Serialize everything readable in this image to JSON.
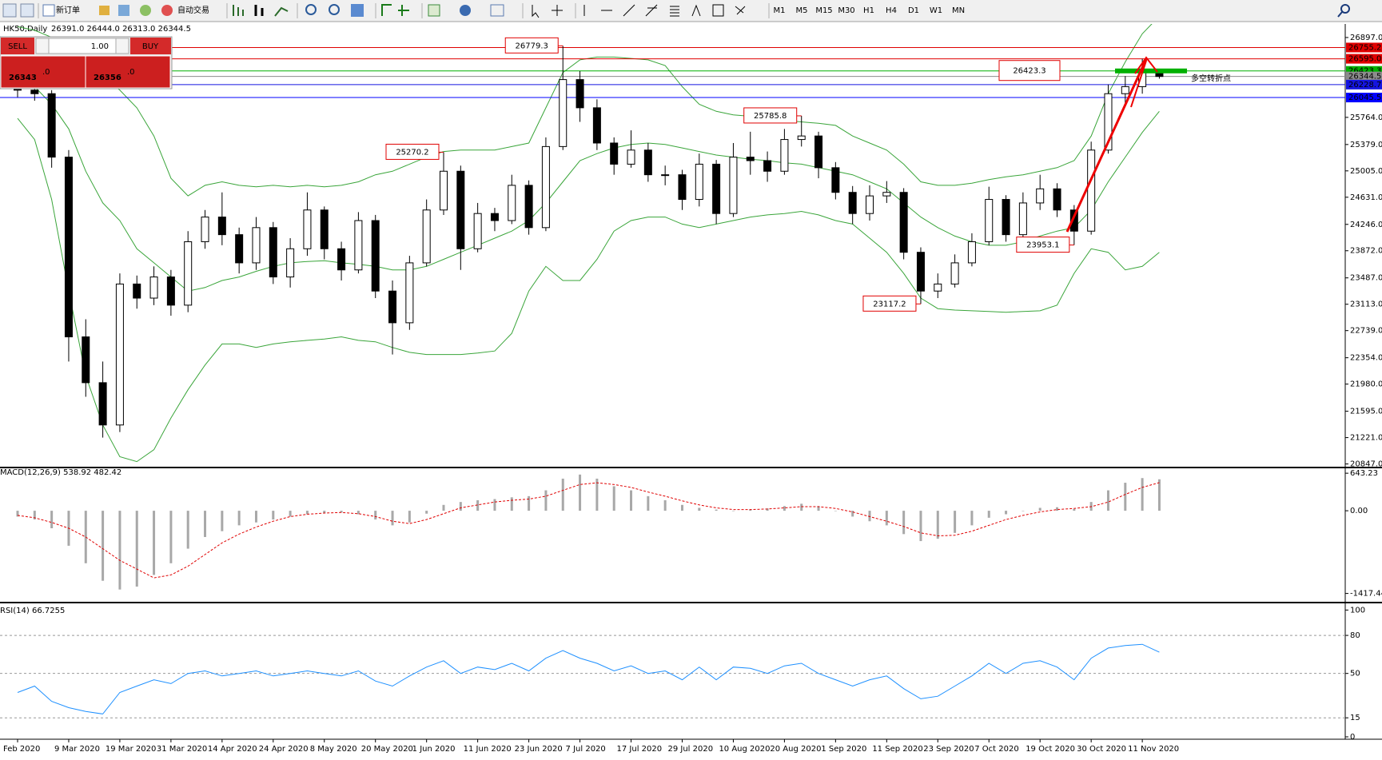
{
  "toolbar": {
    "buttons": [
      "新订单",
      "自动交易"
    ],
    "timeframes": [
      "M1",
      "M5",
      "M15",
      "M30",
      "H1",
      "H4",
      "D1",
      "W1",
      "MN"
    ]
  },
  "trade_panel": {
    "sell": "SELL",
    "buy": "BUY",
    "lots": "1.00",
    "bid": "26343",
    "bid_tail": ".0",
    "ask": "26356",
    "ask_tail": ".0"
  },
  "chart_data": [
    {
      "type": "candlestick",
      "title": "HK50,Daily",
      "subtitle": "26391.0 26444.0 26313.0 26344.5",
      "categories": [
        "Feb 2020",
        null,
        null,
        "9 Mar 2020",
        null,
        null,
        "19 Mar 2020",
        null,
        null,
        "31 Mar 2020",
        null,
        null,
        "14 Apr 2020",
        null,
        null,
        "24 Apr 2020",
        null,
        null,
        "8 May 2020",
        null,
        null,
        "20 May 2020",
        null,
        null,
        "1 Jun 2020",
        null,
        null,
        "11 Jun 2020",
        null,
        null,
        "23 Jun 2020",
        null,
        null,
        "7 Jul 2020",
        null,
        null,
        "17 Jul 2020",
        null,
        null,
        "29 Jul 2020",
        null,
        null,
        "10 Aug 2020",
        null,
        null,
        "20 Aug 2020",
        null,
        null,
        "1 Sep 2020",
        null,
        null,
        "11 Sep 2020",
        null,
        null,
        "23 Sep 2020",
        null,
        null,
        "7 Oct 2020",
        null,
        null,
        "19 Oct 2020",
        null,
        null,
        "30 Oct 2020",
        null,
        null,
        "11 Nov 2020",
        null
      ],
      "open": [
        26250,
        26150,
        26100,
        25200,
        22650,
        22000,
        21400,
        23400,
        23200,
        23500,
        23100,
        24000,
        24350,
        24100,
        23700,
        24200,
        23500,
        23900,
        24450,
        23900,
        23600,
        24300,
        23300,
        22850,
        23700,
        24450,
        25000,
        23900,
        24400,
        24300,
        24800,
        24200,
        25350,
        26300,
        25900,
        25400,
        25100,
        25300,
        24950,
        24950,
        24600,
        25100,
        24400,
        25200,
        25150,
        25000,
        25450,
        25500,
        25050,
        24700,
        24400,
        24650,
        24700,
        23850,
        23300,
        23400,
        23700,
        24000,
        24600,
        24100,
        24550,
        24750,
        24450,
        24150,
        25300,
        26100,
        26200,
        26391
      ],
      "high": [
        26380,
        26280,
        26150,
        25300,
        22900,
        22300,
        23550,
        23520,
        23650,
        23600,
        24150,
        24450,
        24700,
        24200,
        24350,
        24280,
        24050,
        24700,
        24500,
        24000,
        24420,
        24380,
        23450,
        23800,
        24600,
        25270.2,
        25080,
        24550,
        24480,
        24950,
        24870,
        25480,
        26779.3,
        26420,
        26020,
        25480,
        25580,
        25400,
        25080,
        25020,
        25250,
        25160,
        25400,
        25560,
        25280,
        25600,
        25785.8,
        25560,
        25130,
        24790,
        24800,
        24860,
        24760,
        23920,
        23550,
        23820,
        24120,
        24780,
        24660,
        24700,
        24950,
        24830,
        24520,
        25420,
        26230,
        26350,
        26595,
        26444
      ],
      "low": [
        26050,
        26000,
        25050,
        22300,
        21800,
        21221,
        21300,
        23050,
        23100,
        22950,
        23000,
        23900,
        23950,
        23550,
        23600,
        23400,
        23350,
        23800,
        23750,
        23450,
        23550,
        23200,
        22400,
        22750,
        23650,
        24380,
        23600,
        23850,
        24150,
        24250,
        24100,
        24150,
        25300,
        25700,
        25300,
        24950,
        25050,
        24850,
        24800,
        24450,
        24500,
        24250,
        24350,
        24950,
        24850,
        24950,
        25350,
        24900,
        24600,
        24250,
        24300,
        24550,
        23750,
        23117.2,
        23200,
        23350,
        23650,
        23950,
        24000,
        24050,
        24450,
        24350,
        23953.1,
        24100,
        25250,
        25950,
        26100,
        26313
      ],
      "close": [
        26150,
        26100,
        25200,
        22650,
        22000,
        21400,
        23400,
        23200,
        23500,
        23100,
        24000,
        24350,
        24100,
        23700,
        24200,
        23500,
        23900,
        24450,
        23900,
        23600,
        24300,
        23300,
        22850,
        23700,
        24450,
        25000,
        23900,
        24400,
        24300,
        24800,
        24200,
        25350,
        26300,
        25900,
        25400,
        25100,
        25300,
        24950,
        24950,
        24600,
        25100,
        24400,
        25200,
        25150,
        25000,
        25450,
        25500,
        25050,
        24700,
        24400,
        24650,
        24700,
        23850,
        23300,
        23400,
        23700,
        24000,
        24600,
        24100,
        24550,
        24750,
        24450,
        24150,
        25300,
        26100,
        26200,
        26400,
        26344.5
      ],
      "up_color": "#ffffff",
      "down_color": "#000000",
      "bands": {
        "color": "#3aa53a",
        "upper": [
          27050,
          27000,
          26900,
          26750,
          26550,
          26350,
          26150,
          25900,
          25500,
          24900,
          24650,
          24800,
          24850,
          24800,
          24780,
          24800,
          24780,
          24800,
          24780,
          24800,
          24850,
          24950,
          25000,
          25100,
          25200,
          25280,
          25300,
          25300,
          25300,
          25350,
          25400,
          25900,
          26400,
          26580,
          26620,
          26620,
          26600,
          26580,
          26500,
          26200,
          25950,
          25850,
          25800,
          25780,
          25750,
          25720,
          25700,
          25680,
          25650,
          25500,
          25400,
          25300,
          25100,
          24850,
          24800,
          24800,
          24830,
          24880,
          24920,
          24950,
          25000,
          25050,
          25150,
          25500,
          26100,
          26550,
          26950,
          27200
        ],
        "middle": [
          26400,
          26200,
          25950,
          25600,
          25000,
          24550,
          24300,
          23900,
          23700,
          23500,
          23300,
          23350,
          23450,
          23500,
          23580,
          23650,
          23700,
          23720,
          23730,
          23700,
          23680,
          23650,
          23600,
          23600,
          23650,
          23750,
          23850,
          23950,
          24050,
          24150,
          24300,
          24550,
          24850,
          25150,
          25250,
          25330,
          25380,
          25400,
          25380,
          25330,
          25280,
          25230,
          25200,
          25170,
          25150,
          25120,
          25100,
          25050,
          25000,
          24950,
          24850,
          24750,
          24550,
          24350,
          24200,
          24080,
          24000,
          23950,
          23950,
          24000,
          24080,
          24150,
          24200,
          24450,
          24850,
          25200,
          25550,
          25850
        ],
        "lower": [
          25750,
          25450,
          24600,
          23300,
          22100,
          21400,
          20950,
          20880,
          21050,
          21500,
          21900,
          22250,
          22550,
          22550,
          22500,
          22550,
          22580,
          22600,
          22620,
          22650,
          22600,
          22580,
          22500,
          22430,
          22400,
          22400,
          22400,
          22420,
          22450,
          22700,
          23300,
          23650,
          23450,
          23450,
          23750,
          24150,
          24300,
          24350,
          24350,
          24250,
          24200,
          24250,
          24300,
          24350,
          24380,
          24400,
          24430,
          24380,
          24300,
          24250,
          24050,
          23850,
          23550,
          23200,
          23050,
          23030,
          23020,
          23010,
          23000,
          23010,
          23020,
          23100,
          23550,
          23900,
          23850,
          23600,
          23650,
          23850
        ]
      },
      "ylim": [
        20808,
        27089
      ],
      "yticks": [
        {
          "value": 26897,
          "label": "26897.0"
        },
        {
          "value": 25764,
          "label": "25764.0"
        },
        {
          "value": 25379,
          "label": "25379.0"
        },
        {
          "value": 25005,
          "label": "25005.0"
        },
        {
          "value": 24631,
          "label": "24631.0"
        },
        {
          "value": 24246,
          "label": "24246.0"
        },
        {
          "value": 23872,
          "label": "23872.0"
        },
        {
          "value": 23487,
          "label": "23487.0"
        },
        {
          "value": 23113,
          "label": "23113.0"
        },
        {
          "value": 22739,
          "label": "22739.0"
        },
        {
          "value": 22354,
          "label": "22354.0"
        },
        {
          "value": 21980,
          "label": "21980.0"
        },
        {
          "value": 21595,
          "label": "21595.0"
        },
        {
          "value": 21221,
          "label": "21221.0"
        },
        {
          "value": 20847,
          "label": "20847.0"
        }
      ],
      "hlines": [
        {
          "value": 26755.2,
          "color": "#e00000"
        },
        {
          "value": 26595,
          "label": "26595.0",
          "color": "#e00000"
        },
        {
          "value": 26423.3,
          "color": "#00b000"
        },
        {
          "value": 26344.5,
          "color": "#8c8c8c"
        },
        {
          "value": 26228.7,
          "color": "#1515e0"
        },
        {
          "value": 26045.5,
          "color": "#0000ff"
        }
      ],
      "annotations": [
        26779.3,
        25270.2,
        25785.8,
        23953.1,
        23117.2,
        26423.3
      ],
      "annotation_color": "#e00000",
      "note": "多空转折点",
      "note_color": "#33cc33"
    },
    {
      "type": "macd",
      "title": "MACD(12,26,9) 538.92 482.42",
      "histogram": [
        -100,
        -150,
        -300,
        -600,
        -900,
        -1200,
        -1350,
        -1300,
        -1100,
        -900,
        -650,
        -450,
        -350,
        -250,
        -200,
        -150,
        -100,
        -60,
        -40,
        -30,
        -60,
        -150,
        -250,
        -200,
        -50,
        100,
        150,
        180,
        200,
        230,
        250,
        350,
        550,
        620,
        550,
        420,
        350,
        250,
        180,
        100,
        50,
        20,
        0,
        20,
        40,
        80,
        120,
        80,
        0,
        -100,
        -180,
        -250,
        -400,
        -520,
        -480,
        -380,
        -250,
        -120,
        -60,
        0,
        50,
        60,
        30,
        150,
        350,
        480,
        560,
        538.92
      ],
      "signal": [
        -80,
        -120,
        -200,
        -300,
        -450,
        -650,
        -850,
        -1000,
        -1150,
        -1100,
        -950,
        -750,
        -550,
        -400,
        -280,
        -180,
        -100,
        -60,
        -40,
        -30,
        -50,
        -100,
        -180,
        -220,
        -150,
        -50,
        50,
        100,
        150,
        180,
        200,
        250,
        350,
        450,
        480,
        450,
        400,
        320,
        250,
        170,
        100,
        50,
        20,
        20,
        30,
        50,
        70,
        70,
        40,
        -20,
        -100,
        -180,
        -270,
        -380,
        -430,
        -420,
        -350,
        -250,
        -150,
        -80,
        -20,
        20,
        40,
        70,
        150,
        280,
        400,
        482.42
      ],
      "histogram_color": "#a8a8a8",
      "signal_color": "#e00000",
      "ylim": [
        -1560,
        700
      ],
      "yticks": [
        643.23,
        {
          "value": 0,
          "label": "0.00"
        },
        -1417.44
      ]
    },
    {
      "type": "line",
      "title": "RSI(14) 66.7255",
      "values": [
        35,
        40,
        28,
        23,
        20,
        18,
        35,
        40,
        45,
        42,
        50,
        52,
        48,
        50,
        52,
        48,
        50,
        52,
        50,
        48,
        52,
        44,
        40,
        48,
        55,
        60,
        50,
        55,
        53,
        58,
        52,
        62,
        68,
        62,
        58,
        52,
        56,
        50,
        52,
        45,
        55,
        45,
        55,
        54,
        50,
        56,
        58,
        50,
        45,
        40,
        45,
        48,
        38,
        30,
        32,
        40,
        48,
        58,
        50,
        58,
        60,
        55,
        45,
        62,
        70,
        72,
        73,
        66.7255
      ],
      "color": "#1e90ff",
      "ylim": [
        0,
        104
      ],
      "yticks": [
        100,
        80,
        50,
        15,
        0
      ],
      "levels": [
        80,
        50,
        15
      ]
    }
  ]
}
